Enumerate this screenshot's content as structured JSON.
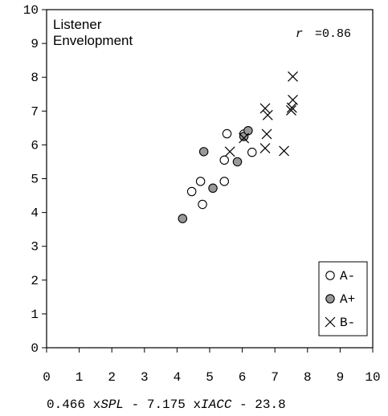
{
  "chart_data": {
    "type": "scatter",
    "title": "Listener\nEnvelopment",
    "title_lines": [
      "Listener",
      "Envelopment"
    ],
    "annotation": "r =0.86",
    "annotation_var": "r",
    "annotation_value": "=0.86",
    "xlabel_parts": [
      "0.466 x",
      "SPL",
      " - 7.175 x",
      "IACC",
      " - 23.8"
    ],
    "xlim": [
      0,
      10
    ],
    "ylim": [
      0,
      10
    ],
    "xticks": [
      0,
      1,
      2,
      3,
      4,
      5,
      6,
      7,
      8,
      9,
      10
    ],
    "yticks": [
      0,
      1,
      2,
      3,
      4,
      5,
      6,
      7,
      8,
      9,
      10
    ],
    "grid": false,
    "legend_position": "bottom-right",
    "series": [
      {
        "name": "A-",
        "marker": "open-circle",
        "color": "#000000",
        "points": [
          {
            "x": 4.45,
            "y": 4.62
          },
          {
            "x": 4.72,
            "y": 4.92
          },
          {
            "x": 4.78,
            "y": 4.24
          },
          {
            "x": 5.45,
            "y": 4.92
          },
          {
            "x": 5.45,
            "y": 5.55
          },
          {
            "x": 5.53,
            "y": 6.33
          },
          {
            "x": 6.3,
            "y": 5.78
          },
          {
            "x": 6.05,
            "y": 6.32
          }
        ]
      },
      {
        "name": "A+",
        "marker": "filled-circle",
        "color": "#999999",
        "points": [
          {
            "x": 4.17,
            "y": 3.82
          },
          {
            "x": 4.82,
            "y": 5.8
          },
          {
            "x": 5.1,
            "y": 4.72
          },
          {
            "x": 5.85,
            "y": 5.5
          },
          {
            "x": 6.05,
            "y": 6.25
          },
          {
            "x": 6.18,
            "y": 6.42
          }
        ]
      },
      {
        "name": "B-",
        "marker": "cross",
        "color": "#000000",
        "points": [
          {
            "x": 5.62,
            "y": 5.8
          },
          {
            "x": 6.05,
            "y": 6.2
          },
          {
            "x": 6.7,
            "y": 5.9
          },
          {
            "x": 6.7,
            "y": 7.08
          },
          {
            "x": 6.75,
            "y": 6.32
          },
          {
            "x": 6.78,
            "y": 6.88
          },
          {
            "x": 7.28,
            "y": 5.82
          },
          {
            "x": 7.5,
            "y": 7.02
          },
          {
            "x": 7.52,
            "y": 7.1
          },
          {
            "x": 7.55,
            "y": 7.33
          },
          {
            "x": 7.55,
            "y": 8.02
          }
        ]
      }
    ]
  }
}
